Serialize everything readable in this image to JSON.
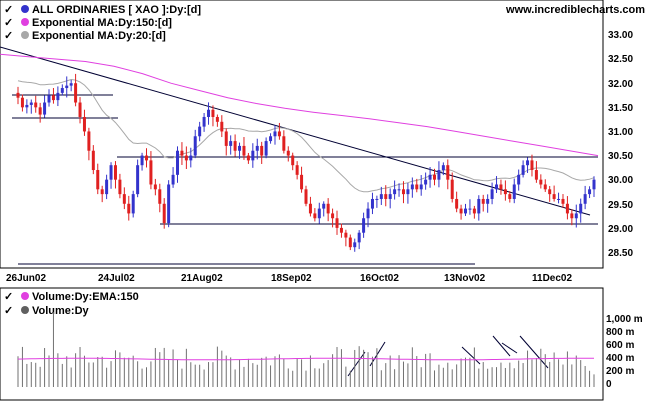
{
  "source": "www.incrediblecharts.com",
  "price_panel": {
    "legend": [
      {
        "label": "ALL ORDINARIES [ XAO ]:Dy:[d]",
        "color": "#3333cc"
      },
      {
        "label": "Exponential MA:Dy:150:[d]",
        "color": "#e040e0"
      },
      {
        "label": "Exponential MA:Dy:20:[d]",
        "color": "#a8a8a8"
      }
    ],
    "y_ticks": [
      "33.00",
      "32.50",
      "32.00",
      "31.50",
      "31.00",
      "30.50",
      "30.00",
      "29.50",
      "29.00",
      "28.50"
    ]
  },
  "x_ticks": [
    "26Jun02",
    "24Jul02",
    "21Aug02",
    "18Sep02",
    "16Oct02",
    "13Nov02",
    "11Dec02"
  ],
  "volume_panel": {
    "legend": [
      {
        "label": "Volume:Dy:EMA:150",
        "color": "#e040e0"
      },
      {
        "label": "Volume:Dy",
        "color": "#606060"
      }
    ],
    "y_ticks": [
      "1,000 m",
      "800 m",
      "600 m",
      "400 m",
      "200 m",
      "0"
    ]
  },
  "chart_data": {
    "type": "candlestick",
    "ylim": [
      28.25,
      33.25
    ],
    "close": [
      31.7,
      31.5,
      31.55,
      31.6,
      31.5,
      31.35,
      31.6,
      31.75,
      31.65,
      31.8,
      31.9,
      31.95,
      32.0,
      31.6,
      31.3,
      31.0,
      30.6,
      30.2,
      29.8,
      29.7,
      30.0,
      30.3,
      30.0,
      29.7,
      29.5,
      29.3,
      29.7,
      30.3,
      30.5,
      30.4,
      29.9,
      29.8,
      29.5,
      29.1,
      29.9,
      30.1,
      30.6,
      30.5,
      30.4,
      30.5,
      30.9,
      31.1,
      31.3,
      31.45,
      31.3,
      31.2,
      31.0,
      30.7,
      30.8,
      30.6,
      30.7,
      30.5,
      30.4,
      30.6,
      30.7,
      30.5,
      30.8,
      30.9,
      31.0,
      30.9,
      30.6,
      30.5,
      30.3,
      30.1,
      29.8,
      29.5,
      29.3,
      29.2,
      29.4,
      29.5,
      29.3,
      29.2,
      29.0,
      28.9,
      28.8,
      28.6,
      28.7,
      28.9,
      29.2,
      29.4,
      29.6,
      29.6,
      29.7,
      29.6,
      29.7,
      29.8,
      29.8,
      29.7,
      29.8,
      29.9,
      29.8,
      29.9,
      30.0,
      30.1,
      30.0,
      30.2,
      30.3,
      30.0,
      29.6,
      29.4,
      29.3,
      29.4,
      29.4,
      29.3,
      29.6,
      29.5,
      29.6,
      29.8,
      29.9,
      29.8,
      29.7,
      29.6,
      29.9,
      30.1,
      30.3,
      30.4,
      30.2,
      30.0,
      29.9,
      29.8,
      29.7,
      29.6,
      29.6,
      29.5,
      29.3,
      29.2,
      29.3,
      29.5,
      29.7,
      29.8,
      30.0
    ],
    "ema150": [
      32.6,
      32.55,
      32.5,
      32.45,
      32.35,
      32.2,
      32.0,
      31.85,
      31.7,
      31.58,
      31.48,
      31.4,
      31.33,
      31.26,
      31.18,
      31.1,
      31.0,
      30.9,
      30.8,
      30.7,
      30.6,
      30.5
    ],
    "volume_ema_m": 430
  }
}
